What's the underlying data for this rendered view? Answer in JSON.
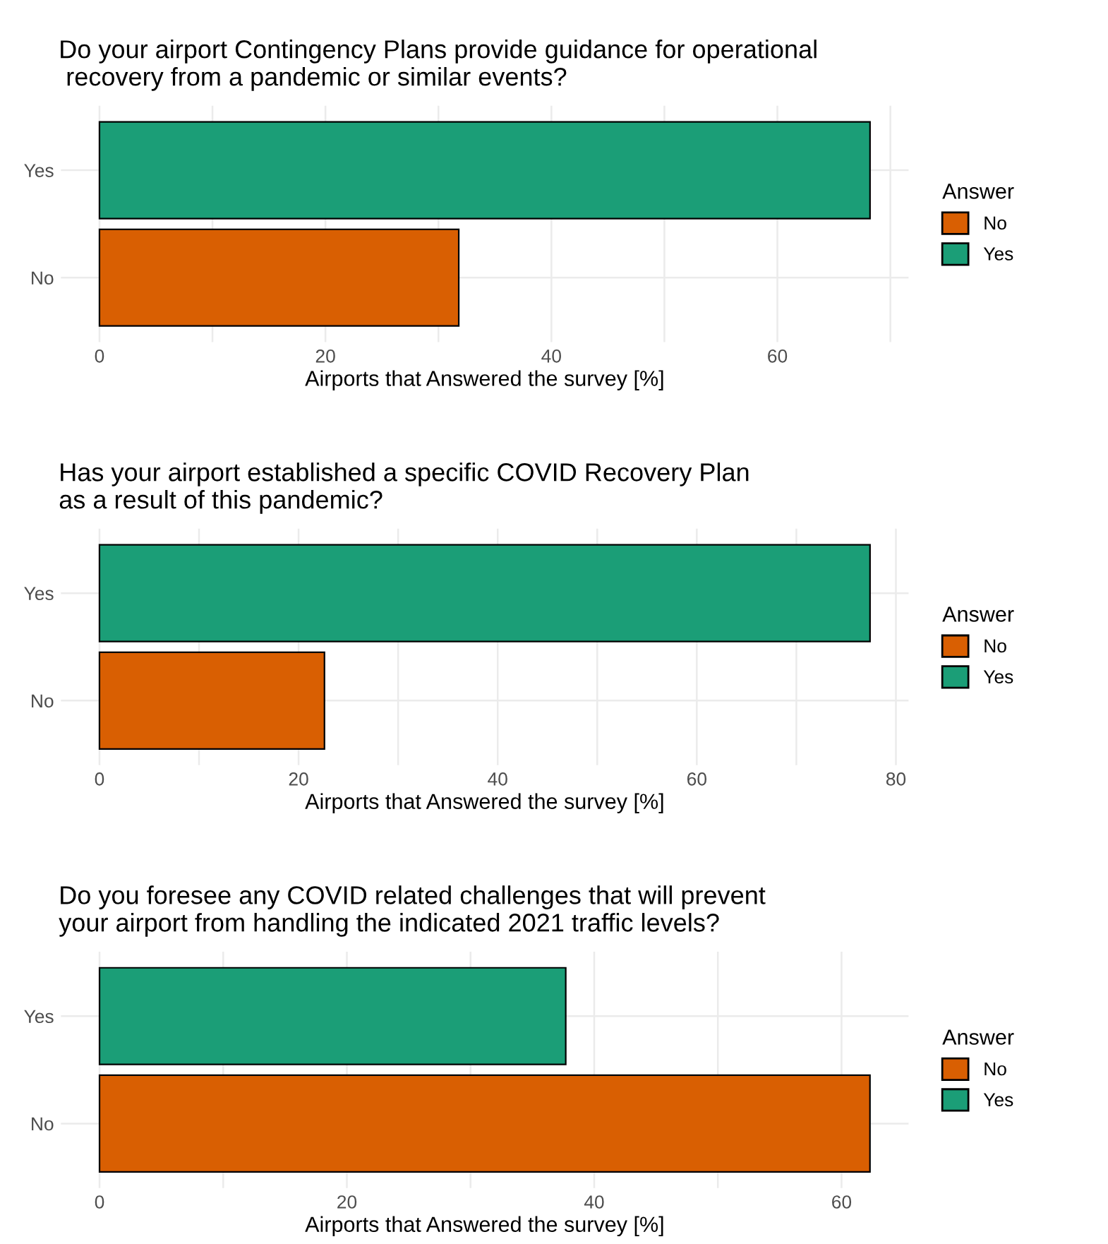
{
  "chart_data": [
    {
      "type": "bar",
      "orientation": "horizontal",
      "title": "Do your airport Contingency Plans provide guidance for operational\n recovery from a pandemic or similar events?",
      "xlabel": "Airports that Answered the survey [%]",
      "legend_title": "Answer",
      "legend": "right",
      "grid": true,
      "categories": [
        "Yes",
        "No"
      ],
      "series": [
        {
          "name": "No",
          "color": "#d95f02",
          "values": [
            null,
            31.8
          ]
        },
        {
          "name": "Yes",
          "color": "#1b9e77",
          "values": [
            68.2,
            null
          ]
        }
      ],
      "xlim": [
        -3.41,
        71.61
      ],
      "xticks": [
        0,
        {
          "value": 10,
          "label": null
        },
        20,
        {
          "value": 30,
          "label": null
        },
        40,
        {
          "value": 50,
          "label": null
        },
        60,
        {
          "value": 70,
          "label": null
        }
      ]
    },
    {
      "type": "bar",
      "orientation": "horizontal",
      "title": "Has your airport established a specific COVID Recovery Plan\nas a result of this pandemic?",
      "xlabel": "Airports that Answered the survey [%]",
      "legend_title": "Answer",
      "legend": "right",
      "grid": true,
      "categories": [
        "Yes",
        "No"
      ],
      "series": [
        {
          "name": "No",
          "color": "#d95f02",
          "values": [
            null,
            22.6
          ]
        },
        {
          "name": "Yes",
          "color": "#1b9e77",
          "values": [
            77.4,
            null
          ]
        }
      ],
      "xlim": [
        -3.87,
        81.27
      ],
      "xticks": [
        0,
        {
          "value": 10,
          "label": null
        },
        20,
        {
          "value": 30,
          "label": null
        },
        40,
        {
          "value": 50,
          "label": null
        },
        60,
        {
          "value": 70,
          "label": null
        },
        80
      ]
    },
    {
      "type": "bar",
      "orientation": "horizontal",
      "title": "Do you foresee any COVID related challenges that will prevent\nyour airport from handling the indicated 2021 traffic levels?",
      "xlabel": "Airports that Answered the survey [%]",
      "legend_title": "Answer",
      "legend": "right",
      "grid": true,
      "categories": [
        "Yes",
        "No"
      ],
      "series": [
        {
          "name": "No",
          "color": "#d95f02",
          "values": [
            null,
            62.3
          ]
        },
        {
          "name": "Yes",
          "color": "#1b9e77",
          "values": [
            37.7,
            null
          ]
        }
      ],
      "xlim": [
        -3.12,
        65.42
      ],
      "xticks": [
        0,
        {
          "value": 10,
          "label": null
        },
        20,
        {
          "value": 30,
          "label": null
        },
        40,
        {
          "value": 50,
          "label": null
        },
        60
      ]
    }
  ]
}
